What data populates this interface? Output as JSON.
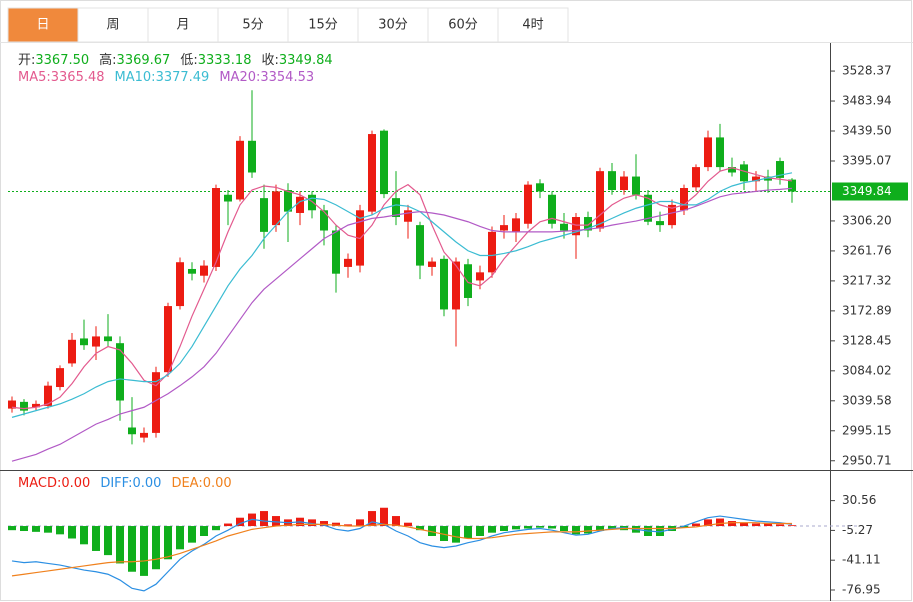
{
  "chart_data": {
    "type": "candlestick",
    "tabs": [
      "日",
      "周",
      "月",
      "5分",
      "15分",
      "30分",
      "60分",
      "4时"
    ],
    "active_tab": 0,
    "up_color": "#ec1c12",
    "down_color": "#0fae1c",
    "header": [
      {
        "name": "开:",
        "value": "3367.50"
      },
      {
        "name": "高:",
        "value": "3369.67"
      },
      {
        "name": "低:",
        "value": "3333.18"
      },
      {
        "name": "收:",
        "value": "3349.84"
      }
    ],
    "open": [
      3028,
      3038,
      3030,
      3032,
      3060,
      3095,
      3132,
      3120,
      3135,
      3125,
      3000,
      2985,
      2992,
      3082,
      3180,
      3235,
      3225,
      3238,
      3345,
      3338,
      3425,
      3340,
      3300,
      3352,
      3318,
      3345,
      3322,
      3292,
      3238,
      3240,
      3320,
      3440,
      3340,
      3305,
      3300,
      3238,
      3250,
      3175,
      3242,
      3218,
      3230,
      3292,
      3290,
      3302,
      3362,
      3345,
      3302,
      3285,
      3312,
      3295,
      3380,
      3352,
      3372,
      3345,
      3306,
      3300,
      3322,
      3356,
      3386,
      3430,
      3386,
      3390,
      3365,
      3372,
      3395,
      3367.5
    ],
    "high": [
      3046,
      3042,
      3040,
      3068,
      3092,
      3140,
      3160,
      3150,
      3168,
      3135,
      3045,
      3000,
      3090,
      3185,
      3252,
      3245,
      3248,
      3360,
      3352,
      3432,
      3500,
      3360,
      3360,
      3362,
      3350,
      3350,
      3330,
      3300,
      3258,
      3330,
      3440,
      3442,
      3380,
      3330,
      3305,
      3252,
      3255,
      3252,
      3250,
      3240,
      3298,
      3315,
      3318,
      3365,
      3368,
      3350,
      3318,
      3318,
      3320,
      3385,
      3392,
      3380,
      3405,
      3352,
      3320,
      3338,
      3360,
      3390,
      3440,
      3450,
      3400,
      3395,
      3380,
      3382,
      3400,
      3369.67
    ],
    "low": [
      3022,
      3018,
      3026,
      3028,
      3055,
      3090,
      3115,
      3100,
      3120,
      3010,
      2975,
      2978,
      2985,
      3075,
      3175,
      3218,
      3215,
      3232,
      3300,
      3335,
      3370,
      3265,
      3290,
      3275,
      3300,
      3310,
      3270,
      3200,
      3222,
      3230,
      3315,
      3340,
      3300,
      3280,
      3220,
      3225,
      3165,
      3120,
      3180,
      3205,
      3222,
      3280,
      3275,
      3295,
      3340,
      3295,
      3280,
      3250,
      3282,
      3290,
      3345,
      3345,
      3338,
      3300,
      3290,
      3295,
      3315,
      3350,
      3380,
      3380,
      3372,
      3352,
      3350,
      3348,
      3360,
      3333.18
    ],
    "close": [
      3040,
      3025,
      3035,
      3062,
      3088,
      3130,
      3122,
      3135,
      3128,
      3040,
      2990,
      2992,
      3082,
      3180,
      3245,
      3228,
      3240,
      3355,
      3335,
      3425,
      3378,
      3290,
      3350,
      3320,
      3342,
      3322,
      3292,
      3228,
      3250,
      3322,
      3435,
      3346,
      3312,
      3322,
      3240,
      3246,
      3175,
      3246,
      3192,
      3230,
      3290,
      3300,
      3310,
      3360,
      3350,
      3302,
      3292,
      3312,
      3292,
      3380,
      3352,
      3372,
      3345,
      3305,
      3300,
      3330,
      3355,
      3386,
      3430,
      3386,
      3378,
      3365,
      3372,
      3366,
      3370,
      3349.84
    ],
    "ylim": [
      2937,
      3567
    ],
    "yticks": [
      3528.37,
      3483.94,
      {
        "value": 3439.5,
        "label": "3439.50"
      },
      3395.07,
      {
        "value": 3306.2,
        "label": "3306.20"
      },
      3261.76,
      3217.32,
      3172.89,
      3128.45,
      3084.02,
      3039.58,
      2995.15,
      2950.71
    ],
    "last_color": "#0fae1c",
    "ma": [
      {
        "name": "MA5:",
        "value_label": "3365.48",
        "color": "#e35a8e",
        "values": [
          3030,
          3028,
          3030,
          3035,
          3045,
          3065,
          3090,
          3110,
          3120,
          3115,
          3095,
          3070,
          3062,
          3080,
          3120,
          3165,
          3205,
          3245,
          3290,
          3330,
          3352,
          3358,
          3356,
          3350,
          3345,
          3335,
          3320,
          3300,
          3285,
          3280,
          3300,
          3330,
          3350,
          3360,
          3345,
          3300,
          3260,
          3240,
          3215,
          3210,
          3225,
          3250,
          3270,
          3290,
          3305,
          3310,
          3305,
          3300,
          3300,
          3315,
          3330,
          3340,
          3345,
          3340,
          3330,
          3325,
          3330,
          3345,
          3365,
          3380,
          3385,
          3380,
          3375,
          3370,
          3368,
          3365.48
        ]
      },
      {
        "name": "MA10:",
        "value_label": "3377.49",
        "color": "#3bbcd2",
        "values": [
          3015,
          3020,
          3025,
          3030,
          3035,
          3042,
          3050,
          3060,
          3068,
          3072,
          3070,
          3068,
          3068,
          3078,
          3095,
          3120,
          3150,
          3180,
          3210,
          3235,
          3255,
          3280,
          3300,
          3320,
          3335,
          3340,
          3338,
          3330,
          3320,
          3310,
          3315,
          3325,
          3330,
          3328,
          3320,
          3305,
          3290,
          3275,
          3262,
          3255,
          3255,
          3258,
          3262,
          3268,
          3275,
          3280,
          3285,
          3290,
          3295,
          3302,
          3310,
          3318,
          3325,
          3330,
          3335,
          3335,
          3330,
          3330,
          3338,
          3350,
          3358,
          3363,
          3366,
          3370,
          3374,
          3377.49
        ]
      },
      {
        "name": "MA20:",
        "value_label": "3354.53",
        "color": "#b25ac6",
        "values": [
          2950,
          2955,
          2960,
          2968,
          2975,
          2985,
          2995,
          3005,
          3012,
          3020,
          3025,
          3030,
          3040,
          3050,
          3062,
          3075,
          3090,
          3110,
          3135,
          3160,
          3185,
          3205,
          3220,
          3235,
          3250,
          3265,
          3280,
          3290,
          3300,
          3305,
          3310,
          3312,
          3315,
          3318,
          3320,
          3318,
          3315,
          3310,
          3305,
          3298,
          3292,
          3290,
          3290,
          3290,
          3290,
          3290,
          3291,
          3292,
          3294,
          3296,
          3300,
          3303,
          3306,
          3310,
          3314,
          3318,
          3322,
          3328,
          3335,
          3342,
          3346,
          3348,
          3350,
          3352,
          3353,
          3354.53
        ]
      }
    ],
    "macd": {
      "ylim": [
        -89,
        65
      ],
      "yticks": [
        30.56,
        -5.27,
        -41.11,
        -76.95
      ],
      "hist": {
        "name": "MACD:",
        "value_label": "0.00",
        "color": "#ec1c12",
        "values": [
          -5,
          -6,
          -7,
          -8,
          -10,
          -15,
          -22,
          -30,
          -35,
          -45,
          -55,
          -60,
          -52,
          -40,
          -28,
          -20,
          -12,
          -5,
          3,
          10,
          15,
          18,
          12,
          8,
          10,
          8,
          6,
          4,
          2,
          8,
          18,
          22,
          12,
          4,
          -5,
          -12,
          -18,
          -20,
          -15,
          -12,
          -8,
          -6,
          -4,
          -3,
          -2,
          -3,
          -6,
          -10,
          -9,
          -6,
          -3,
          -5,
          -8,
          -12,
          -12,
          -6,
          -2,
          3,
          8,
          9,
          6,
          4,
          3,
          3,
          2,
          1
        ]
      },
      "diff": {
        "name": "DIFF:",
        "value_label": "0.00",
        "color": "#2b8fe3",
        "values": [
          -42,
          -44,
          -43,
          -45,
          -47,
          -50,
          -53,
          -55,
          -58,
          -65,
          -75,
          -78,
          -70,
          -55,
          -40,
          -30,
          -22,
          -12,
          -5,
          3,
          8,
          6,
          5,
          4,
          5,
          3,
          1,
          -4,
          -6,
          -3,
          5,
          2,
          -6,
          -12,
          -20,
          -24,
          -26,
          -24,
          -20,
          -17,
          -12,
          -8,
          -6,
          -4,
          -3,
          -5,
          -8,
          -11,
          -10,
          -6,
          -3,
          -2,
          -4,
          -6,
          -7,
          -4,
          0,
          5,
          10,
          12,
          10,
          8,
          6,
          5,
          4,
          2
        ]
      },
      "dea": {
        "name": "DEA:",
        "value_label": "0.00",
        "color": "#f0811d",
        "values": [
          -60,
          -58,
          -56,
          -54,
          -52,
          -50,
          -48,
          -46,
          -44,
          -43,
          -43,
          -42,
          -40,
          -37,
          -33,
          -28,
          -23,
          -18,
          -12,
          -8,
          -4,
          -2,
          0,
          1,
          2,
          2,
          2,
          1,
          0,
          0,
          1,
          2,
          1,
          -1,
          -4,
          -7,
          -10,
          -13,
          -15,
          -15,
          -14,
          -12,
          -10,
          -9,
          -8,
          -7,
          -7,
          -7,
          -6,
          -5,
          -4,
          -3,
          -3,
          -3,
          -3,
          -3,
          -2,
          -1,
          1,
          3,
          4,
          4,
          4,
          3,
          3,
          3
        ]
      }
    }
  }
}
